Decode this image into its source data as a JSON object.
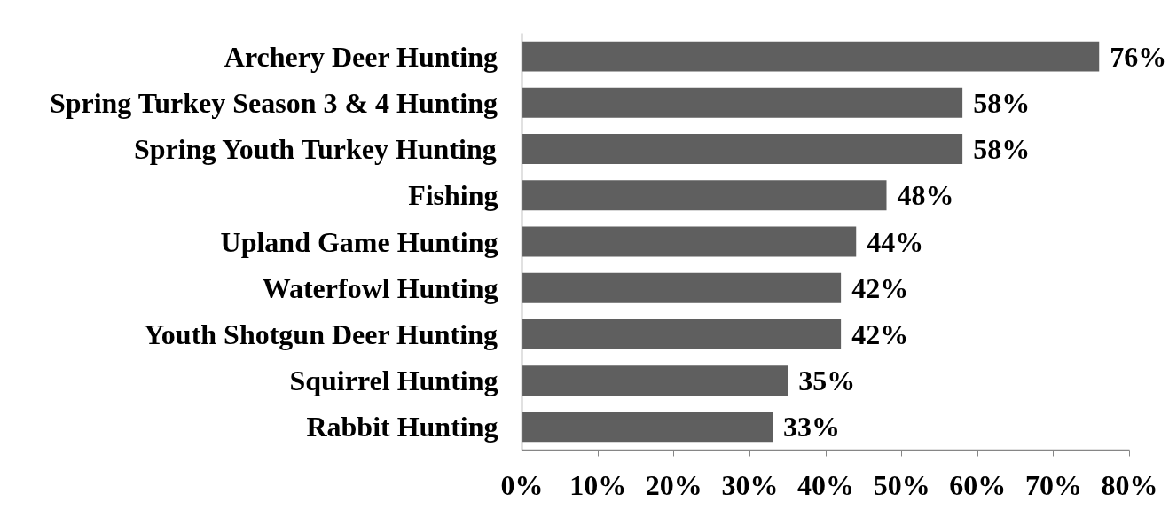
{
  "chart_data": {
    "type": "bar",
    "orientation": "horizontal",
    "categories": [
      "Archery Deer Hunting",
      "Spring Turkey Season 3 & 4 Hunting",
      "Spring Youth Turkey Hunting",
      "Fishing",
      "Upland Game Hunting",
      "Waterfowl Hunting",
      "Youth Shotgun Deer Hunting",
      "Squirrel Hunting",
      "Rabbit Hunting"
    ],
    "values": [
      76,
      58,
      58,
      48,
      44,
      42,
      42,
      35,
      33
    ],
    "value_labels": [
      "76%",
      "58%",
      "58%",
      "48%",
      "44%",
      "42%",
      "42%",
      "35%",
      "33%"
    ],
    "color": "#5f5f5f",
    "xlim": [
      0,
      80
    ],
    "xticks": [
      {
        "value": 0,
        "label": "0%"
      },
      {
        "value": 10,
        "label": "10%"
      },
      {
        "value": 20,
        "label": "20%"
      },
      {
        "value": 30,
        "label": "30%"
      },
      {
        "value": 40,
        "label": "40%"
      },
      {
        "value": 50,
        "label": "50%"
      },
      {
        "value": 60,
        "label": "60%"
      },
      {
        "value": 70,
        "label": "70%"
      },
      {
        "value": 80,
        "label": "80%"
      }
    ],
    "grid": false
  }
}
